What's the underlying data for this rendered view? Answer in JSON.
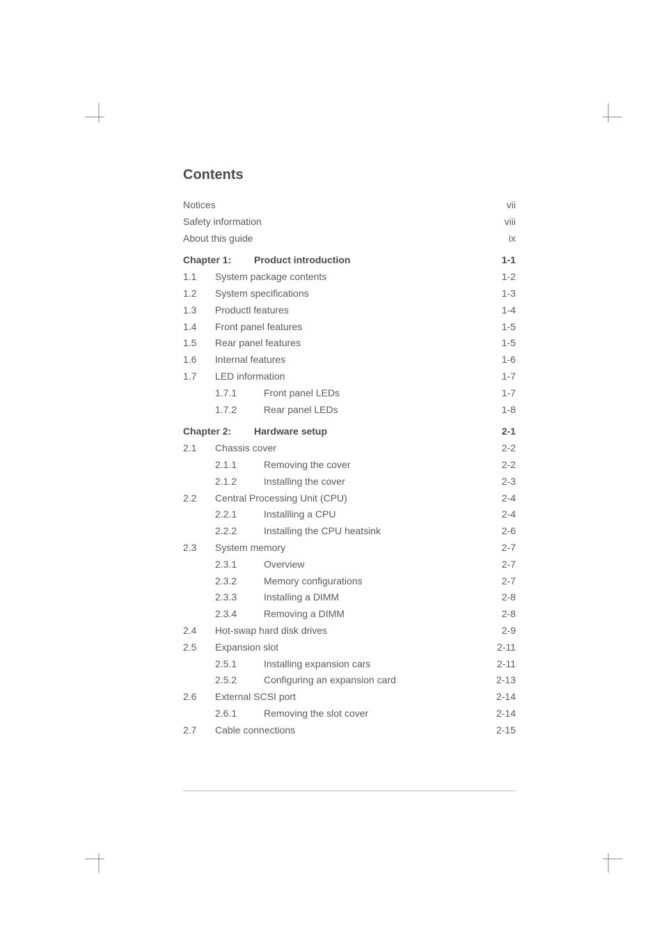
{
  "title": "Contents",
  "crop_marks": {
    "color": "#808080",
    "stroke_width": 1
  },
  "frontmatter": [
    {
      "label": "Notices",
      "page": "vii"
    },
    {
      "label": "Safety information",
      "page": "viii"
    },
    {
      "label": "About this guide",
      "page": "ix"
    }
  ],
  "chapters": [
    {
      "heading_prefix": "Chapter",
      "heading_num": "1:",
      "heading_label": "Product introduction",
      "heading_page": "1-1",
      "sections": [
        {
          "num": "1.1",
          "label": "System package contents",
          "page": "1-2"
        },
        {
          "num": "1.2",
          "label": "System specifications",
          "page": "1-3"
        },
        {
          "num": "1.3",
          "label": "Productl features",
          "page": "1-4"
        },
        {
          "num": "1.4",
          "label": "Front panel features",
          "page": "1-5"
        },
        {
          "num": "1.5",
          "label": "Rear panel features",
          "page": "1-5"
        },
        {
          "num": "1.6",
          "label": "Internal features",
          "page": "1-6"
        },
        {
          "num": "1.7",
          "label": "LED information",
          "page": "1-7",
          "subs": [
            {
              "num": "1.7.1",
              "label": "Front panel LEDs",
              "page": "1-7"
            },
            {
              "num": "1.7.2",
              "label": "Rear panel LEDs",
              "page": "1-8"
            }
          ]
        }
      ]
    },
    {
      "heading_prefix": "Chapter",
      "heading_num": "2:",
      "heading_label": "Hardware setup",
      "heading_page": "2-1",
      "sections": [
        {
          "num": "2.1",
          "label": "Chassis cover",
          "page": "2-2",
          "subs": [
            {
              "num": "2.1.1",
              "label": "Removing the cover",
              "page": "2-2"
            },
            {
              "num": "2.1.2",
              "label": "Installing the cover",
              "page": "2-3"
            }
          ]
        },
        {
          "num": "2.2",
          "label": "Central Processing Unit (CPU)",
          "page": "2-4",
          "subs": [
            {
              "num": "2.2.1",
              "label": "Installling a CPU",
              "page": "2-4"
            },
            {
              "num": "2.2.2",
              "label": "Installing the CPU heatsink",
              "page": "2-6"
            }
          ]
        },
        {
          "num": "2.3",
          "label": "System memory",
          "page": "2-7",
          "subs": [
            {
              "num": "2.3.1",
              "label": "Overview",
              "page": "2-7"
            },
            {
              "num": "2.3.2",
              "label": "Memory configurations",
              "page": "2-7"
            },
            {
              "num": "2.3.3",
              "label": "Installing a DIMM",
              "page": "2-8"
            },
            {
              "num": "2.3.4",
              "label": "Removing a DIMM",
              "page": "2-8"
            }
          ]
        },
        {
          "num": "2.4",
          "label": "Hot-swap hard disk drives",
          "page": "2-9"
        },
        {
          "num": "2.5",
          "label": "Expansion slot",
          "page": "2-11",
          "subs": [
            {
              "num": "2.5.1",
              "label": "Installing expansion cars",
              "page": "2-11"
            },
            {
              "num": "2.5.2",
              "label": "Configuring an expansion card",
              "page": "2-13"
            }
          ]
        },
        {
          "num": "2.6",
          "label": "External SCSI port",
          "page": "2-14",
          "subs": [
            {
              "num": "2.6.1",
              "label": "Removing the slot cover",
              "page": "2-14"
            }
          ]
        },
        {
          "num": "2.7",
          "label": "Cable connections",
          "page": "2-15"
        }
      ]
    }
  ]
}
